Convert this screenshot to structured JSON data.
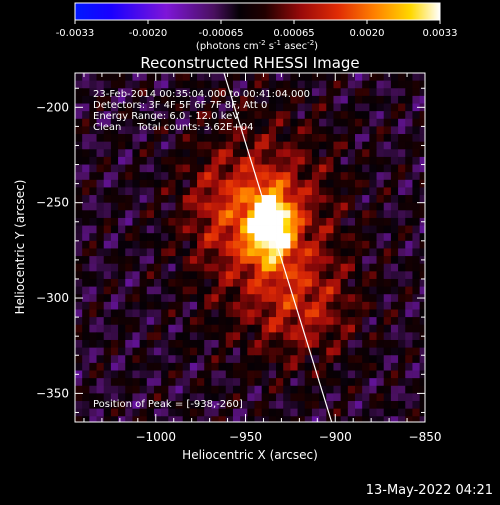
{
  "colorbar": {
    "label": "(photons cm",
    "label_exp1": "-2",
    "label_s": " s",
    "label_exp2": "-1",
    "label_asec": " asec",
    "label_exp3": "-2",
    "label_close": ")",
    "tick_labels": [
      "-0.0033",
      "-0.0020",
      "-0.00065",
      "0.00065",
      "0.0020",
      "0.0033"
    ]
  },
  "chart_data": {
    "type": "heatmap",
    "title": "Reconstructed RHESSI Image",
    "xlabel": "Heliocentric X (arcsec)",
    "ylabel": "Heliocentric Y (arcsec)",
    "xlim": [
      -1045,
      -850
    ],
    "ylim": [
      -365,
      -182
    ],
    "x_ticks": [
      -1000,
      -950,
      -900,
      -850
    ],
    "y_ticks": [
      -200,
      -250,
      -300,
      -350
    ],
    "x_tick_labels": [
      "−1000",
      "−950",
      "−900",
      "−850"
    ],
    "y_tick_labels": [
      "−200",
      "−250",
      "−300",
      "−350"
    ],
    "colorbar_range": [
      -0.0033,
      0.0033
    ],
    "colormap": "purple-black-red-yellow-white",
    "peak": [
      -938,
      -260
    ],
    "limb_line": [
      [
        -962,
        -182
      ],
      [
        -902,
        -365
      ]
    ],
    "annotations": [
      "23-Feb-2014 00:35:04.000 to 00:41:04.000",
      "Detectors: 3F 4F 5F 6F 7F 8F, Att 0",
      "Energy Range: 6.0 - 12.0 keV",
      "Clean     Total counts: 3.62E+04",
      "Position of Peak = [-938,-260]"
    ]
  },
  "footer": {
    "timestamp": "13-May-2022 04:21"
  }
}
